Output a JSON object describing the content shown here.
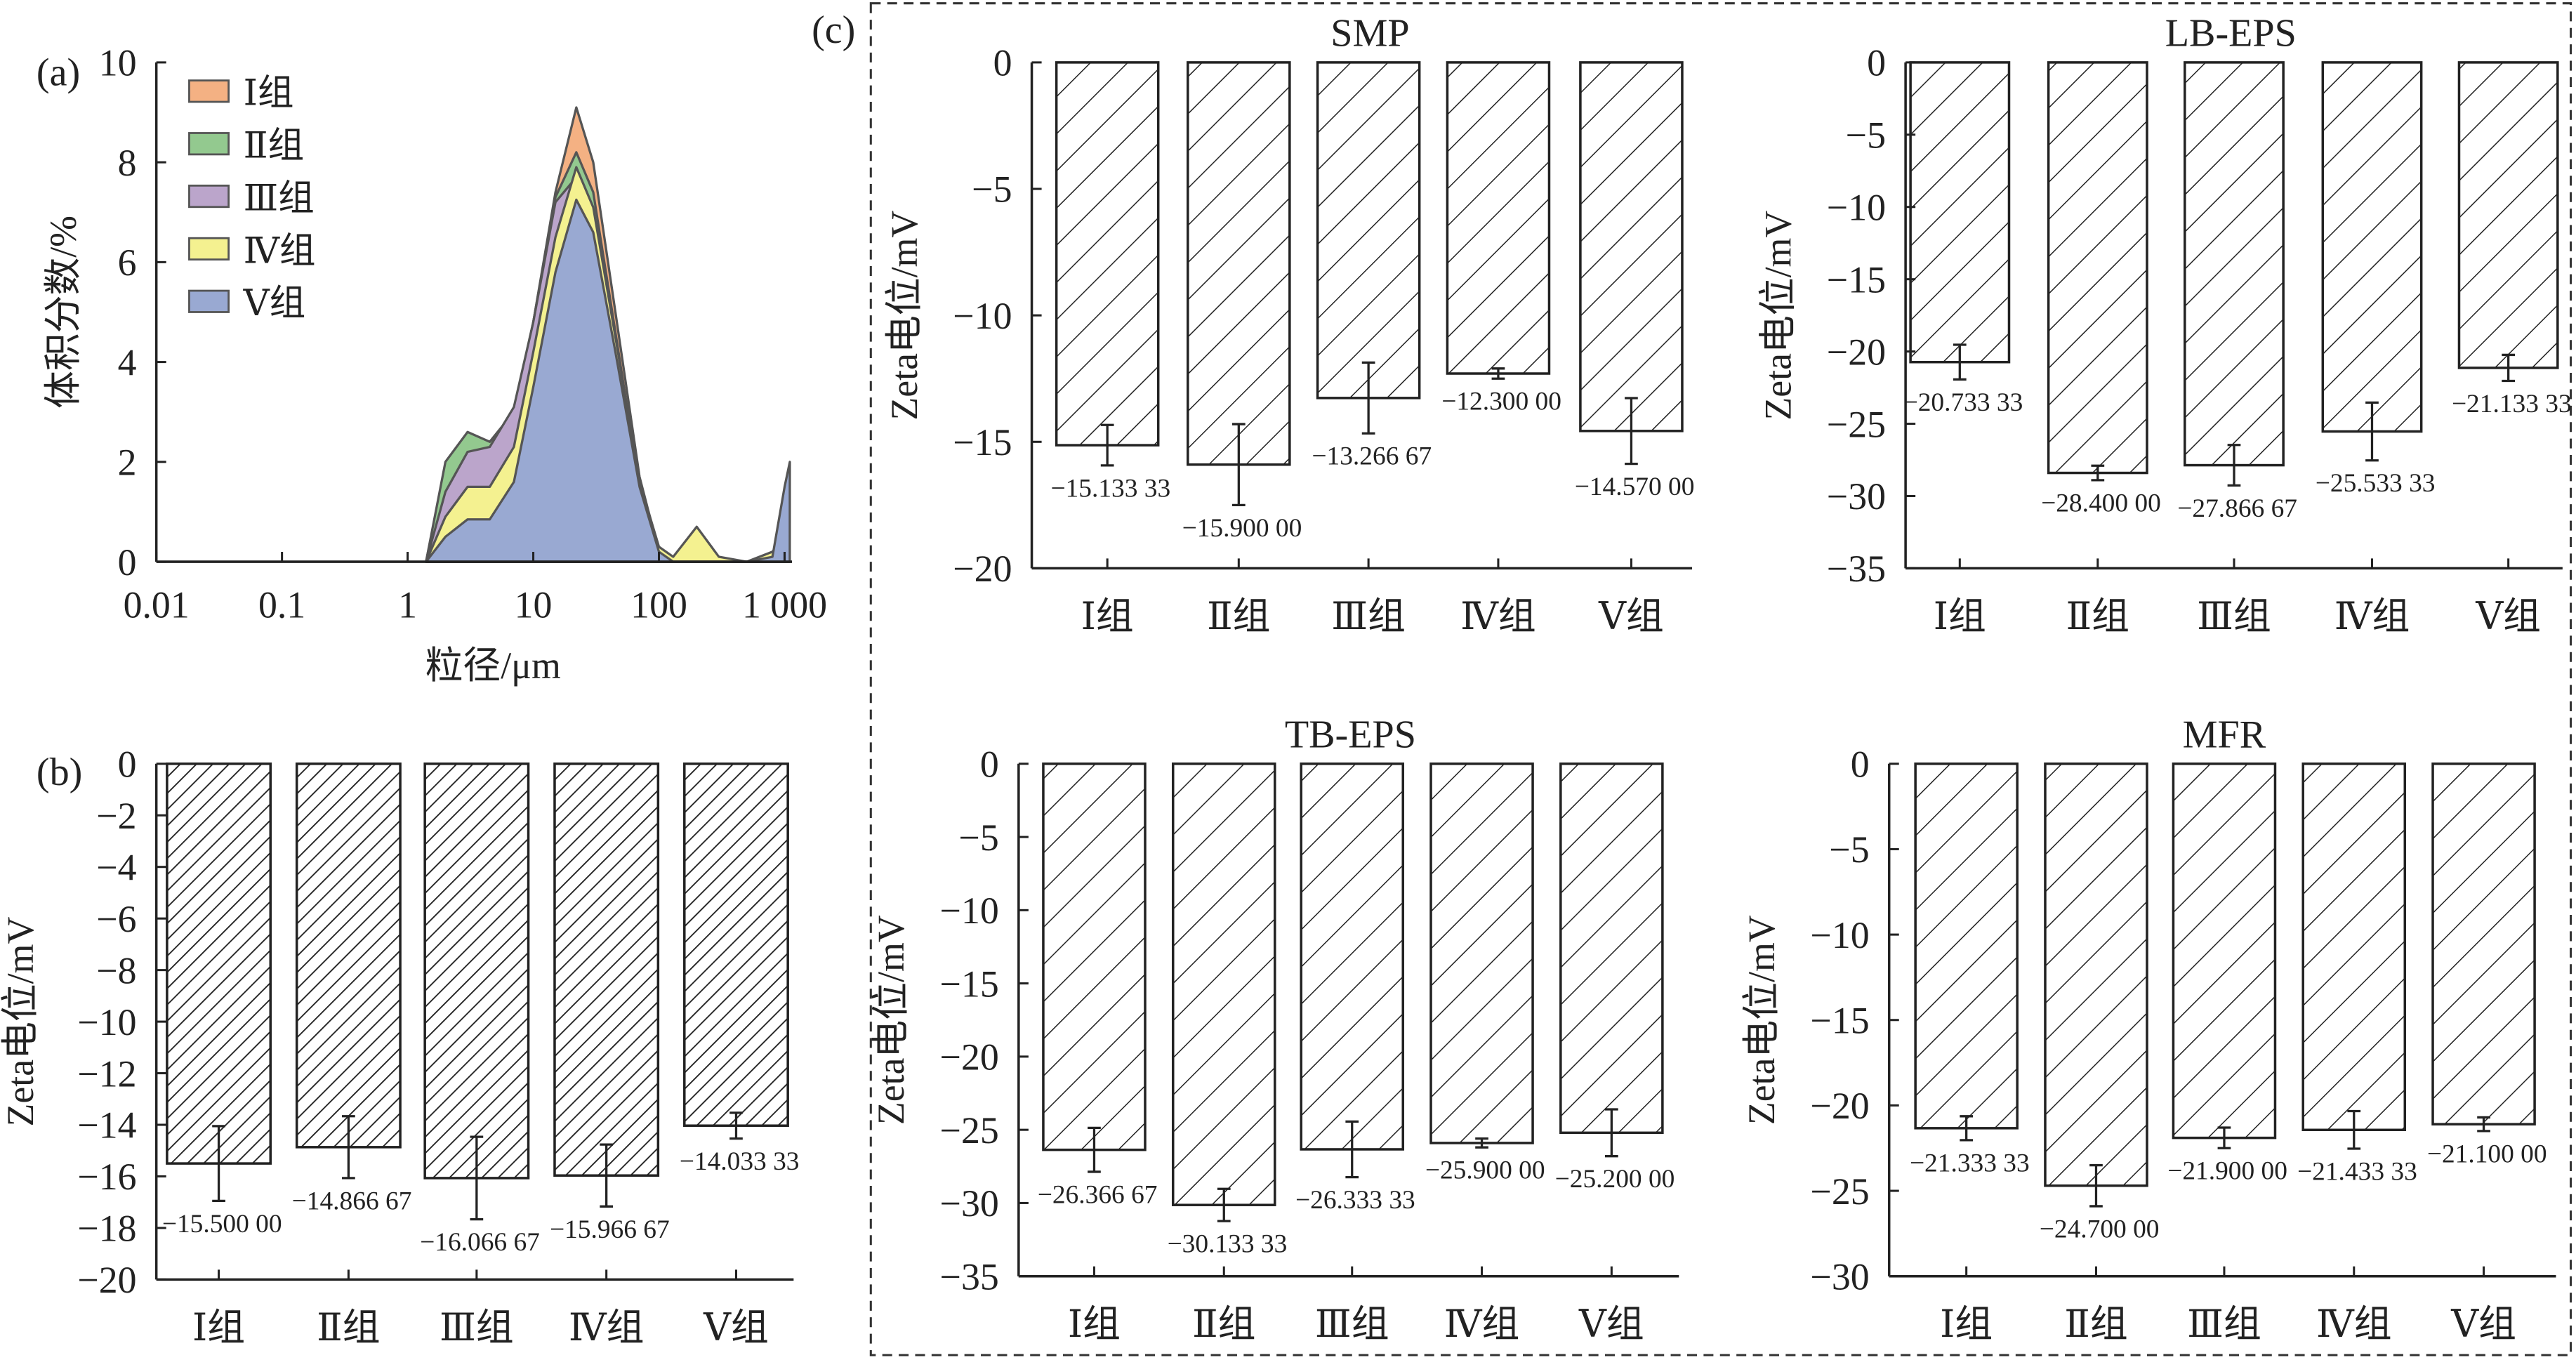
{
  "panel_labels": {
    "a": "(a)",
    "b": "(b)",
    "c": "(c)"
  },
  "chart_data": [
    {
      "id": "a",
      "type": "area",
      "xlabel": "粒径/μm",
      "ylabel": "体积分数/%",
      "xscale": "log",
      "xlim": [
        0.01,
        1100
      ],
      "ylim": [
        0,
        10
      ],
      "xticks": [
        0.01,
        0.1,
        1,
        10,
        100,
        1000
      ],
      "xtick_labels": [
        "0.01",
        "0.1",
        "1",
        "10",
        "100",
        "1 000"
      ],
      "yticks": [
        0,
        2,
        4,
        6,
        8,
        10
      ],
      "ytick_labels": [
        "0",
        "2",
        "4",
        "6",
        "8",
        "10"
      ],
      "legend_position": "top-left",
      "x": [
        1.4,
        2,
        3,
        4.5,
        7,
        10,
        15,
        22,
        30,
        45,
        70,
        100,
        130,
        200,
        300,
        500,
        800,
        1000,
        1100
      ],
      "series": [
        {
          "name": "Ⅰ组",
          "color": "#f4b183",
          "values": [
            0,
            1.9,
            2.5,
            2.4,
            3.0,
            4.8,
            7.4,
            9.1,
            8.0,
            5.0,
            1.7,
            0.2,
            0,
            0,
            0,
            0,
            0,
            0,
            0
          ]
        },
        {
          "name": "Ⅱ组",
          "color": "#93c98f",
          "values": [
            0,
            2.0,
            2.6,
            2.4,
            3.0,
            4.8,
            7.3,
            8.2,
            7.4,
            4.6,
            1.5,
            0.2,
            0,
            0,
            0,
            0,
            0,
            0,
            0
          ]
        },
        {
          "name": "Ⅲ组",
          "color": "#bba5cb",
          "values": [
            0,
            1.4,
            2.2,
            2.3,
            3.1,
            4.8,
            7.2,
            7.7,
            6.5,
            4.0,
            1.3,
            0.1,
            0,
            0,
            0,
            0,
            0,
            0,
            0
          ]
        },
        {
          "name": "Ⅳ组",
          "color": "#f4f190",
          "values": [
            0,
            0.9,
            1.5,
            1.5,
            2.3,
            4.2,
            6.5,
            7.9,
            7.1,
            4.5,
            1.6,
            0.3,
            0.1,
            0.7,
            0.1,
            0,
            0.2,
            0.5,
            0
          ]
        },
        {
          "name": "Ⅴ组",
          "color": "#99a9d2",
          "values": [
            0,
            0.5,
            0.85,
            0.85,
            1.6,
            3.5,
            5.8,
            7.25,
            6.6,
            4.2,
            1.5,
            0.2,
            0,
            0,
            0,
            0,
            0.1,
            1.5,
            2.0
          ]
        }
      ]
    },
    {
      "id": "b",
      "type": "bar",
      "title": "",
      "ylabel": "Zeta电位/mV",
      "ylim": [
        -20,
        0
      ],
      "ytick_step": 2,
      "categories": [
        "Ⅰ组",
        "Ⅱ组",
        "Ⅲ组",
        "Ⅳ组",
        "Ⅴ组"
      ],
      "values": [
        -15.5,
        -14.86667,
        -16.06667,
        -15.96667,
        -14.03333
      ],
      "errors": [
        1.45,
        1.2,
        1.6,
        1.2,
        0.5
      ],
      "value_labels": [
        "−15.500 00",
        "−14.866 67",
        "−16.066 67",
        "−15.966 67",
        "−14.033 33"
      ]
    },
    {
      "id": "smp",
      "type": "bar",
      "title": "SMP",
      "ylabel": "Zeta电位/mV",
      "ylim": [
        -20,
        0
      ],
      "ytick_step": 5,
      "categories": [
        "Ⅰ组",
        "Ⅱ组",
        "Ⅲ组",
        "Ⅳ组",
        "Ⅴ组"
      ],
      "values": [
        -15.13333,
        -15.9,
        -13.26667,
        -12.3,
        -14.57
      ],
      "errors": [
        0.8,
        1.6,
        1.4,
        0.2,
        1.3
      ],
      "value_labels": [
        "−15.133 33",
        "−15.900 00",
        "−13.266 67",
        "−12.300 00",
        "−14.570 00"
      ]
    },
    {
      "id": "lb",
      "type": "bar",
      "title": "LB-EPS",
      "ylabel": "Zeta电位/mV",
      "ylim": [
        -35,
        0
      ],
      "ytick_step": 5,
      "categories": [
        "Ⅰ组",
        "Ⅱ组",
        "Ⅲ组",
        "Ⅳ组",
        "Ⅴ组"
      ],
      "values": [
        -20.73333,
        -28.4,
        -27.86667,
        -25.53333,
        -21.13333
      ],
      "errors": [
        1.2,
        0.5,
        1.4,
        2.0,
        0.9
      ],
      "value_labels": [
        "−20.733 33",
        "−28.400 00",
        "−27.866 67",
        "−25.533 33",
        "−21.133 33"
      ]
    },
    {
      "id": "tb",
      "type": "bar",
      "title": "TB-EPS",
      "ylabel": "Zeta电位/mV",
      "ylim": [
        -35,
        0
      ],
      "ytick_step": 5,
      "categories": [
        "Ⅰ组",
        "Ⅱ组",
        "Ⅲ组",
        "Ⅳ组",
        "Ⅴ组"
      ],
      "values": [
        -26.36667,
        -30.13333,
        -26.33333,
        -25.9,
        -25.2
      ],
      "errors": [
        1.5,
        1.1,
        1.9,
        0.3,
        1.6
      ],
      "value_labels": [
        "−26.366 67",
        "−30.133 33",
        "−26.333 33",
        "−25.900 00",
        "−25.200 00"
      ]
    },
    {
      "id": "mfr",
      "type": "bar",
      "title": "MFR",
      "ylabel": "Zeta电位/mV",
      "ylim": [
        -30,
        0
      ],
      "ytick_step": 5,
      "categories": [
        "Ⅰ组",
        "Ⅱ组",
        "Ⅲ组",
        "Ⅳ组",
        "Ⅴ组"
      ],
      "values": [
        -21.33333,
        -24.7,
        -21.9,
        -21.43333,
        -21.1
      ],
      "errors": [
        0.7,
        1.2,
        0.6,
        1.1,
        0.4
      ],
      "value_labels": [
        "−21.333 33",
        "−24.700 00",
        "−21.900 00",
        "−21.433 33",
        "−21.100 00"
      ]
    }
  ]
}
